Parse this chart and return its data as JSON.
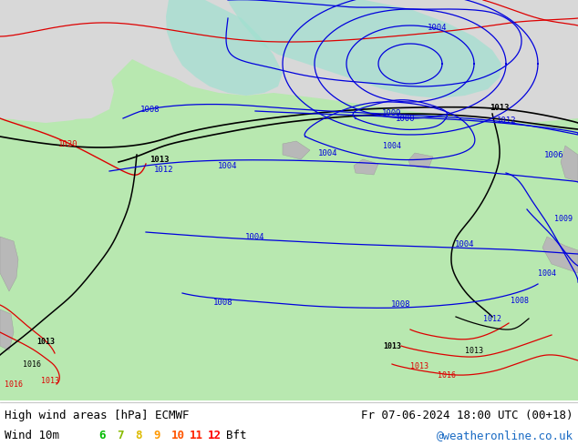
{
  "title_left": "High wind areas [hPa] ECMWF",
  "title_left2": "Wind 10m",
  "title_right": "Fr 07-06-2024 18:00 UTC (00+18)",
  "title_right2": "@weatheronline.co.uk",
  "bg_color": "#ffffff",
  "sea_color": "#d8d8d8",
  "land_color": "#b8e8b0",
  "teal_color": "#a0e0d0",
  "blue_line": "#0000dd",
  "black_line": "#000000",
  "red_line": "#dd0000",
  "bft_colors": [
    "#00bb00",
    "#88bb00",
    "#ddbb00",
    "#ff9900",
    "#ff5500",
    "#ff2200",
    "#ff0000"
  ],
  "bft_nums": [
    "6",
    "7",
    "8",
    "9",
    "10",
    "11",
    "12"
  ]
}
